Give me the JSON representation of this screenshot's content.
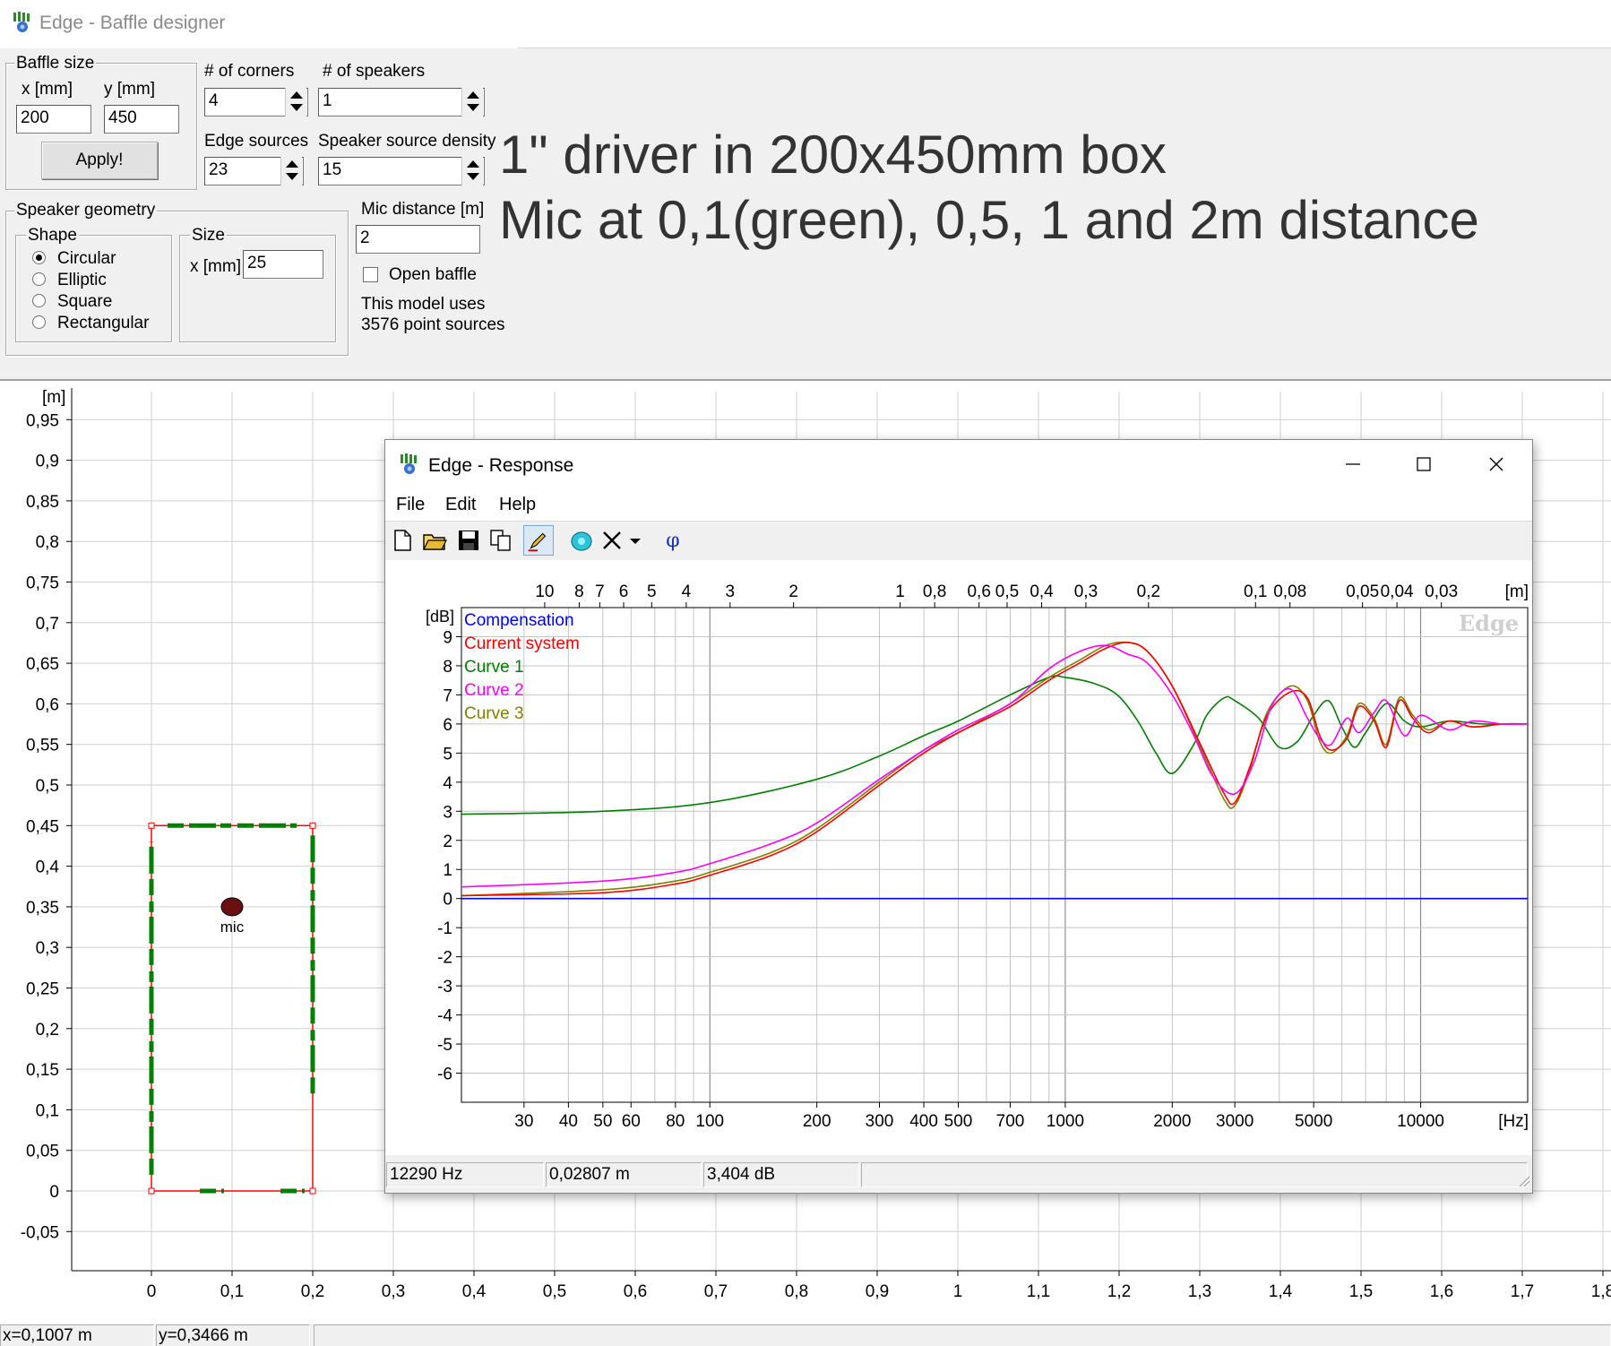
{
  "window": {
    "title": "Edge - Baffle designer"
  },
  "baffle_size": {
    "group_label": "Baffle size",
    "x_label": "x [mm]",
    "x_value": "200",
    "y_label": "y [mm]",
    "y_value": "450",
    "apply_label": "Apply!"
  },
  "corners": {
    "label": "# of corners",
    "value": "4"
  },
  "speakers": {
    "label": "# of speakers",
    "value": "1"
  },
  "edge_sources": {
    "label": "Edge sources",
    "value": "23"
  },
  "speaker_density": {
    "label": "Speaker source density",
    "value": "15"
  },
  "speaker_geometry": {
    "group_label": "Speaker geometry",
    "shape_label": "Shape",
    "shapes": [
      "Circular",
      "Elliptic",
      "Square",
      "Rectangular"
    ],
    "selected_shape": "Circular",
    "size_label": "Size",
    "size_x_label": "x [mm]",
    "size_x_value": "25"
  },
  "mic": {
    "distance_label": "Mic distance [m]",
    "distance_value": "2",
    "open_baffle_label": "Open baffle",
    "open_baffle_checked": false,
    "model_line1": "This model uses",
    "model_line2": "3576 point sources"
  },
  "annotation": {
    "line1": "1\" driver in 200x450mm box",
    "line2": "Mic at 0,1(green), 0,5, 1 and 2m distance"
  },
  "canvas": {
    "y_unit": "[m]",
    "y_ticks": [
      "0,95",
      "0,9",
      "0,85",
      "0,8",
      "0,75",
      "0,7",
      "0,65",
      "0,6",
      "0,55",
      "0,5",
      "0,45",
      "0,4",
      "0,35",
      "0,3",
      "0,25",
      "0,2",
      "0,15",
      "0,1",
      "0,05",
      "0",
      "-0,05"
    ],
    "x_ticks": [
      "0",
      "0,1",
      "0,2",
      "0,3",
      "0,4",
      "0,5",
      "0,6",
      "0,7",
      "0,8",
      "0,9",
      "1",
      "1,1",
      "1,2",
      "1,3",
      "1,4",
      "1,5",
      "1,6",
      "1,7",
      "1,8"
    ],
    "mic_label": "mic",
    "colors": {
      "baffle_outline": "#ff0000",
      "edge_sources": "#008000",
      "grid": "#d0d0d0"
    }
  },
  "main_status": {
    "x_readout": "x=0,1007 m",
    "y_readout": "y=0,3466 m"
  },
  "response_window": {
    "title": "Edge - Response",
    "menu": [
      "File",
      "Edit",
      "Help"
    ],
    "toolbar_icons": [
      "new-file-icon",
      "open-folder-icon",
      "save-icon",
      "copy-icon",
      "pen-icon",
      "speaker-icon",
      "clear-x-icon",
      "dropdown-arrow-icon",
      "phi-icon"
    ],
    "status": {
      "frequency": "12290 Hz",
      "distance": "0,02807 m",
      "level": "3,404 dB"
    },
    "watermark": "Edge"
  },
  "chart_data": {
    "type": "line",
    "x_scale": "log",
    "xlabel": "[Hz]",
    "ylabel": "[dB]",
    "top_axis_label": "[m]",
    "xlim": [
      20,
      20000
    ],
    "ylim": [
      -7,
      10
    ],
    "x_ticks": [
      30,
      40,
      50,
      60,
      80,
      100,
      200,
      300,
      400,
      500,
      700,
      1000,
      2000,
      3000,
      5000,
      10000
    ],
    "x_tick_labels": [
      "30",
      "40",
      "50",
      "60",
      "80",
      "100",
      "200",
      "300",
      "400",
      "500",
      "700",
      "1000",
      "2000",
      "3000",
      "5000",
      "10000"
    ],
    "y_ticks": [
      9,
      8,
      7,
      6,
      5,
      4,
      3,
      2,
      1,
      0,
      -1,
      -2,
      -3,
      -4,
      -5,
      -6
    ],
    "top_ticks": [
      {
        "label": "10",
        "hz": 34.3
      },
      {
        "label": "8",
        "hz": 42.9
      },
      {
        "label": "7",
        "hz": 49
      },
      {
        "label": "6",
        "hz": 57.2
      },
      {
        "label": "5",
        "hz": 68.6
      },
      {
        "label": "4",
        "hz": 85.8
      },
      {
        "label": "3",
        "hz": 114
      },
      {
        "label": "2",
        "hz": 172
      },
      {
        "label": "1",
        "hz": 343
      },
      {
        "label": "0,8",
        "hz": 429
      },
      {
        "label": "0,6",
        "hz": 572
      },
      {
        "label": "0,5",
        "hz": 686
      },
      {
        "label": "0,4",
        "hz": 858
      },
      {
        "label": "0,3",
        "hz": 1143
      },
      {
        "label": "0,2",
        "hz": 1715
      },
      {
        "label": "0,1",
        "hz": 3430
      },
      {
        "label": "0,08",
        "hz": 4288
      },
      {
        "label": "0,05",
        "hz": 6860
      },
      {
        "label": "0,04",
        "hz": 8575
      },
      {
        "label": "0,03",
        "hz": 11433
      }
    ],
    "grid": true,
    "legend_position": "top-left",
    "series": [
      {
        "name": "Compensation",
        "color": "#0000ff",
        "x": [
          20,
          20000
        ],
        "y": [
          0,
          0
        ]
      },
      {
        "name": "Current system",
        "color": "#ff0000",
        "x": [
          20,
          50,
          80,
          100,
          150,
          200,
          300,
          400,
          500,
          700,
          900,
          1100,
          1300,
          1500,
          1700,
          2000,
          2400,
          2800,
          3000,
          3300,
          3700,
          4300,
          4800,
          5200,
          5600,
          6200,
          6700,
          7400,
          8000,
          8700,
          9500,
          10500,
          12000,
          14000,
          17000,
          20000
        ],
        "y": [
          0.1,
          0.2,
          0.5,
          0.8,
          1.5,
          2.3,
          3.9,
          5,
          5.7,
          6.6,
          7.5,
          8.1,
          8.6,
          8.8,
          8.5,
          7.3,
          5.3,
          3.6,
          3.3,
          4.5,
          6.3,
          7.1,
          6.9,
          5.6,
          5.1,
          5.5,
          6.6,
          6.1,
          5.2,
          6.8,
          6.2,
          5.7,
          6.1,
          5.9,
          6,
          6
        ]
      },
      {
        "name": "Curve 1",
        "color": "#008000",
        "x": [
          20,
          50,
          100,
          200,
          300,
          400,
          500,
          700,
          900,
          1000,
          1200,
          1400,
          1600,
          1800,
          2000,
          2300,
          2500,
          2800,
          3000,
          3500,
          4000,
          4500,
          5000,
          5500,
          6000,
          6500,
          7000,
          8000,
          9000,
          10000,
          12000,
          15000,
          20000
        ],
        "y": [
          2.9,
          3,
          3.3,
          4.1,
          4.9,
          5.6,
          6.1,
          7,
          7.6,
          7.6,
          7.4,
          7,
          6.1,
          5,
          4.3,
          5.3,
          6.3,
          6.9,
          6.8,
          6.2,
          5.2,
          5.4,
          6.3,
          6.8,
          5.9,
          5.2,
          5.7,
          6.7,
          6.1,
          5.9,
          6.1,
          6,
          6
        ]
      },
      {
        "name": "Curve 2",
        "color": "#ff00ff",
        "x": [
          20,
          50,
          80,
          100,
          150,
          200,
          300,
          400,
          500,
          700,
          900,
          1100,
          1300,
          1500,
          1700,
          2000,
          2300,
          2600,
          3000,
          3400,
          3800,
          4300,
          4800,
          5200,
          5600,
          6200,
          6700,
          7400,
          8000,
          9000,
          10000,
          12000,
          14000,
          17000,
          20000
        ],
        "y": [
          0.4,
          0.6,
          0.9,
          1.2,
          1.9,
          2.6,
          4.1,
          5.1,
          5.8,
          6.7,
          7.9,
          8.5,
          8.7,
          8.4,
          8.1,
          7,
          5.6,
          4.2,
          3.6,
          4.7,
          6.6,
          7.2,
          6.2,
          5.5,
          5.3,
          6.2,
          5.7,
          6.4,
          6.8,
          5.6,
          6.3,
          5.8,
          6.1,
          6,
          6
        ]
      },
      {
        "name": "Curve 3",
        "color": "#808000",
        "x": [
          20,
          50,
          80,
          100,
          150,
          200,
          300,
          400,
          500,
          700,
          900,
          1100,
          1300,
          1500,
          1700,
          2000,
          2400,
          2800,
          3000,
          3300,
          3700,
          4300,
          4800,
          5200,
          5600,
          6200,
          6700,
          7400,
          8000,
          8700,
          9500,
          10500,
          12000,
          14000,
          17000,
          20000
        ],
        "y": [
          0.1,
          0.3,
          0.6,
          0.9,
          1.6,
          2.4,
          4,
          5.1,
          5.7,
          6.7,
          7.6,
          8.2,
          8.7,
          8.8,
          8.5,
          7.3,
          5.2,
          3.4,
          3.2,
          4.4,
          6.4,
          7.3,
          6.8,
          5.4,
          5,
          5.6,
          6.7,
          6.2,
          5.3,
          6.9,
          6.3,
          5.8,
          6.1,
          5.9,
          6,
          6
        ]
      }
    ]
  }
}
